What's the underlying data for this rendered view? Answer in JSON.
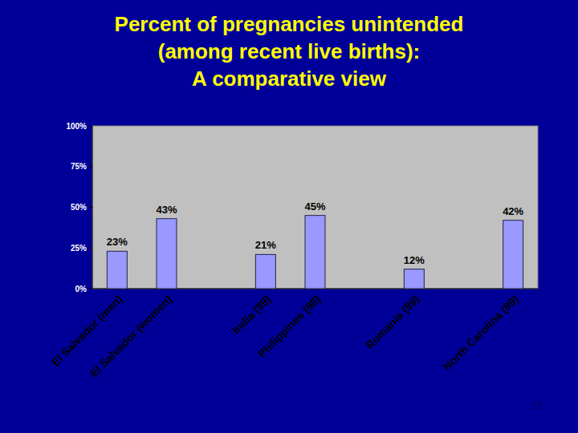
{
  "chart_data": {
    "type": "bar",
    "title": "Percent of pregnancies unintended\n(among recent live births):\nA comparative view",
    "categories": [
      "El Salvador (men)",
      "El Salvador (women)",
      null,
      "India (99)",
      "Philippines (98)",
      null,
      "Romania (99)",
      null,
      "North Carolina (99)"
    ],
    "values": [
      23,
      43,
      null,
      21,
      45,
      null,
      12,
      null,
      42
    ],
    "value_labels": [
      "23%",
      "43%",
      null,
      "21%",
      "45%",
      null,
      "12%",
      null,
      "42%"
    ],
    "color": "#9999ff",
    "ylim": [
      0,
      100
    ],
    "yticks": [
      {
        "value": 0,
        "label": "0%"
      },
      {
        "value": 25,
        "label": "25%"
      },
      {
        "value": 50,
        "label": "50%"
      },
      {
        "value": 75,
        "label": "75%"
      },
      {
        "value": 100,
        "label": "100%"
      }
    ],
    "grid": false,
    "data_labels": true,
    "annotations": [
      "29"
    ]
  }
}
